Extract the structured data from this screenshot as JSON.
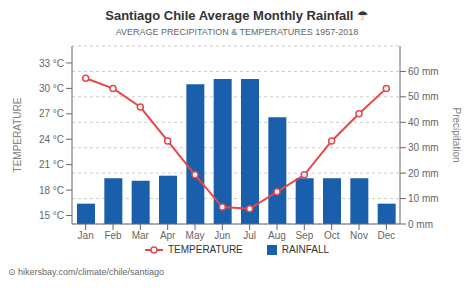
{
  "chart_data": {
    "type": "bar",
    "title": "Santiago Chile Average Monthly Rainfall ☂",
    "subtitle": "AVERAGE PRECIPITATION & TEMPERATURES 1957-2018",
    "ylabel": "TEMPERATURE",
    "y2label": "Precipitation",
    "annotations": [
      "⊙ hikersbay.com/climate/chile/santiago"
    ],
    "categories": [
      "Jan",
      "Feb",
      "Mar",
      "Apr",
      "May",
      "Jun",
      "Jul",
      "Aug",
      "Sep",
      "Oct",
      "Nov",
      "Dec"
    ],
    "series": [
      {
        "name": "TEMPERATURE",
        "type": "line",
        "marker": "circle",
        "color": "#e8474a",
        "axis": "y",
        "values": [
          31.2,
          30.0,
          27.8,
          23.8,
          19.8,
          16.0,
          15.8,
          17.8,
          19.8,
          23.8,
          27.0,
          30.0
        ]
      },
      {
        "name": "RAINFALL",
        "type": "bar",
        "color": "#1a5fac",
        "axis": "y2",
        "values": [
          8,
          18,
          17,
          19,
          55,
          57,
          57,
          42,
          18,
          18,
          18,
          8
        ]
      }
    ],
    "ylim": [
      14,
      35
    ],
    "yticks": [
      {
        "value": 15,
        "label": "15 °C"
      },
      {
        "value": 18,
        "label": "18 °C"
      },
      {
        "value": 21,
        "label": "21 °C"
      },
      {
        "value": 24,
        "label": "24 °C"
      },
      {
        "value": 27,
        "label": "27 °C"
      },
      {
        "value": 30,
        "label": "30 °C"
      },
      {
        "value": 33,
        "label": "33 °C"
      }
    ],
    "y2lim": [
      0,
      70
    ],
    "y2ticks": [
      {
        "value": 0,
        "label": "0 mm"
      },
      {
        "value": 10,
        "label": "10 mm"
      },
      {
        "value": 20,
        "label": "20 mm"
      },
      {
        "value": 30,
        "label": "30 mm"
      },
      {
        "value": 40,
        "label": "40 mm"
      },
      {
        "value": 50,
        "label": "50 mm"
      },
      {
        "value": 60,
        "label": "60 mm"
      }
    ],
    "grid": true,
    "legend": "bottom"
  }
}
